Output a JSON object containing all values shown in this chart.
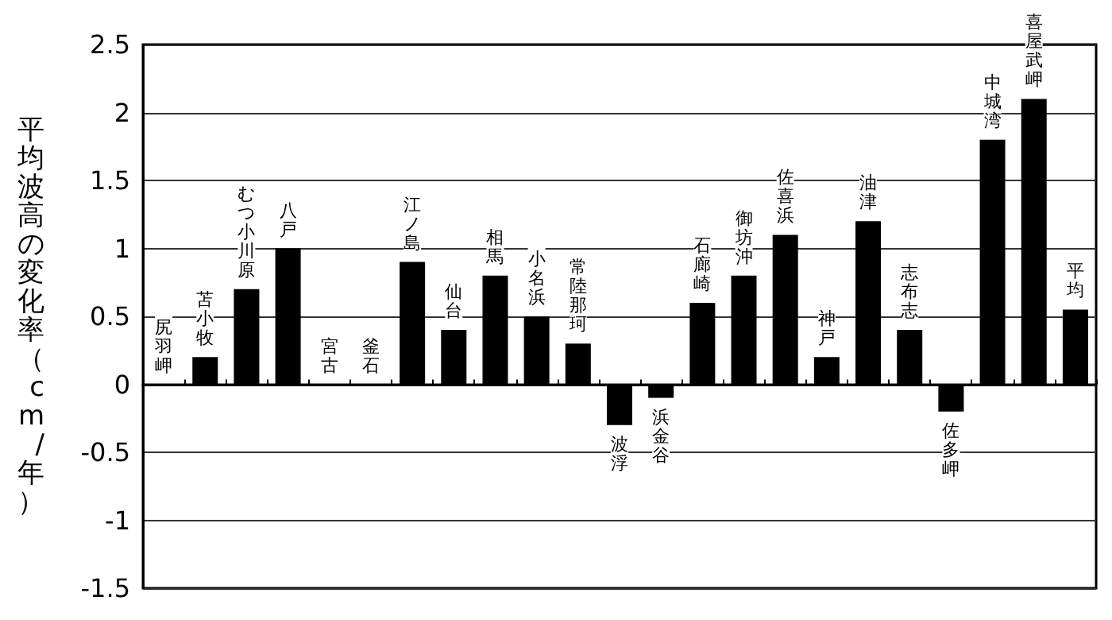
{
  "chart_data": {
    "type": "bar",
    "ylabel": "平均波高の変化率（cm/年）",
    "categories": [
      "尻羽岬",
      "苫小牧",
      "むつ小川原",
      "八戸",
      "宮古",
      "釜石",
      "江ノ島",
      "仙台",
      "相馬",
      "小名浜",
      "常陸那珂",
      "波浮",
      "浜金谷",
      "石廊崎",
      "御坊沖",
      "佐喜浜",
      "神戸",
      "油津",
      "志布志",
      "佐多岬",
      "中城湾",
      "喜屋武岬",
      "平均"
    ],
    "values": [
      0,
      0.2,
      0.7,
      1.0,
      0,
      0,
      0.9,
      0.4,
      0.8,
      0.5,
      0.3,
      -0.3,
      -0.1,
      0.6,
      0.8,
      1.1,
      0.2,
      1.2,
      0.4,
      -0.2,
      1.8,
      2.1,
      0.55
    ],
    "color": "#000000",
    "ylim": [
      -1.5,
      2.5
    ],
    "yticks": [
      -1.5,
      -1,
      -0.5,
      0,
      0.5,
      1,
      1.5,
      2,
      2.5
    ],
    "grid": "y"
  }
}
